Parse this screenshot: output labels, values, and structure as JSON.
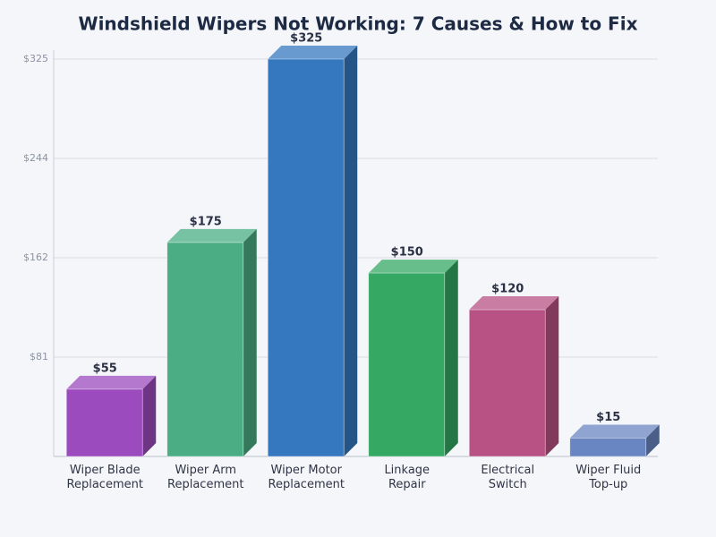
{
  "chart_data": {
    "type": "bar3d",
    "title": "Windshield Wipers Not Working: 7 Causes & How to Fix",
    "categories": [
      "Wiper Blade Replacement",
      "Wiper Arm Replacement",
      "Wiper Motor Replacement",
      "Linkage Repair",
      "Electrical Switch",
      "Wiper Fluid Top-up"
    ],
    "values": [
      55,
      175,
      325,
      150,
      120,
      15
    ],
    "value_labels": [
      "$55",
      "$175",
      "$325",
      "$150",
      "$120",
      "$15"
    ],
    "colors": [
      "#9b4bbd",
      "#4aad84",
      "#3578c0",
      "#35a863",
      "#b85284",
      "#6a86c2"
    ],
    "ylim": [
      0,
      325
    ],
    "yticks": [
      {
        "value": 81.25,
        "label": "$81"
      },
      {
        "value": 162.5,
        "label": "$162"
      },
      {
        "value": 243.75,
        "label": "$244"
      },
      {
        "value": 325,
        "label": "$325"
      }
    ],
    "grid": true
  }
}
